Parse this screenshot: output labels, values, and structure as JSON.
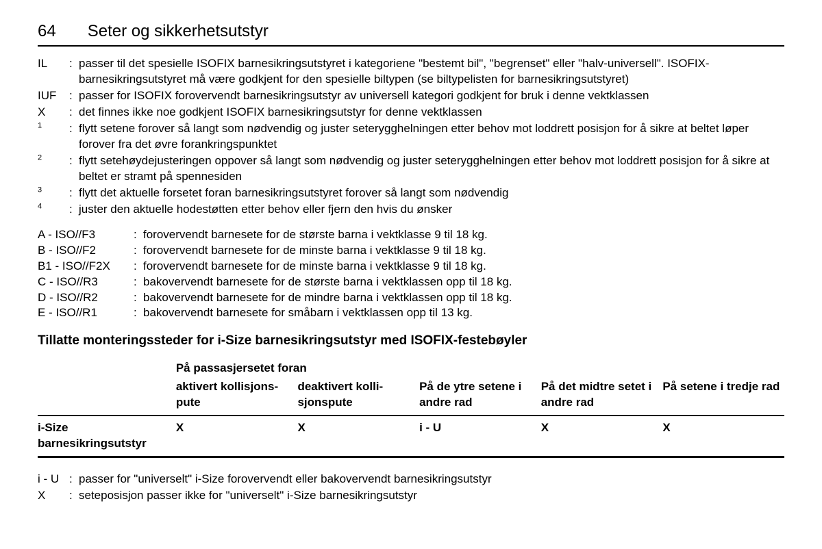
{
  "page": {
    "number": "64",
    "title": "Seter og sikkerhetsutstyr"
  },
  "definitions_top": [
    {
      "key": "IL",
      "text": "passer til det spesielle ISOFIX barnesikringsutstyret i kategoriene \"bestemt bil\", \"begrenset\" eller \"halv-universell\". ISOFIX-barnesikringsutstyret må være godkjent for den spesielle biltypen (se biltypelisten for barnesikringsutstyret)"
    },
    {
      "key": "IUF",
      "text": "passer for ISOFIX forovervendt barnesikringsutstyr av universell kategori godkjent for bruk i denne vektklassen"
    },
    {
      "key": "X",
      "text": "det finnes ikke noe godkjent ISOFIX barnesikringsutstyr for denne vektklassen"
    },
    {
      "key": "1",
      "sup": true,
      "text": "flytt setene forover så langt som nødvendig og juster seterygghelningen etter behov mot loddrett posisjon for å sikre at beltet løper forover fra det øvre forankringspunktet"
    },
    {
      "key": "2",
      "sup": true,
      "text": "flytt setehøydejusteringen oppover så langt som nødvendig og juster seterygghelningen etter behov mot loddrett posisjon for å sikre at beltet er stramt på spennesiden"
    },
    {
      "key": "3",
      "sup": true,
      "text": "flytt det aktuelle forsetet foran barnesikringsutstyret forover så langt som nødvendig"
    },
    {
      "key": "4",
      "sup": true,
      "text": "juster den aktuelle hodestøtten etter behov eller fjern den hvis du ønsker"
    }
  ],
  "iso_classes": [
    {
      "key": "A - ISO//F3",
      "text": "forovervendt barnesete for de største barna i vektklasse 9 til 18 kg."
    },
    {
      "key": "B - ISO//F2",
      "text": "forovervendt barnesete for de minste barna i vektklasse 9 til 18 kg."
    },
    {
      "key": "B1 - ISO//F2X",
      "text": "forovervendt barnesete for de minste barna i vektklasse 9 til 18 kg."
    },
    {
      "key": "C - ISO//R3",
      "text": "bakovervendt barnesete for de største barna i vektklassen opp til 18 kg."
    },
    {
      "key": "D - ISO//R2",
      "text": "bakovervendt barnesete for de mindre barna i vektklassen opp til 18 kg."
    },
    {
      "key": "E - ISO//R1",
      "text": "bakovervendt barnesete for småbarn i vektklassen opp til 13 kg."
    }
  ],
  "section_heading": "Tillatte monteringssteder for i-Size barnesikringsutstyr med ISOFIX-festebøyler",
  "table": {
    "group_header": "På passasjersetet foran",
    "columns": [
      "aktivert kollisjons­pute",
      "deaktivert kolli­sjonspute",
      "På de ytre setene i andre rad",
      "På det midtre setet i andre rad",
      "På setene i tredje rad"
    ],
    "row_label": "i-Size barnesikringsutstyr",
    "row_values": [
      "X",
      "X",
      "i - U",
      "X",
      "X"
    ]
  },
  "definitions_bottom": [
    {
      "key": "i - U",
      "text": "passer for \"universelt\" i-Size forovervendt eller bakovervendt barnesikringsutstyr"
    },
    {
      "key": "X",
      "text": "seteposisjon passer ikke for \"universelt\" i-Size barnesikringsutstyr"
    }
  ]
}
